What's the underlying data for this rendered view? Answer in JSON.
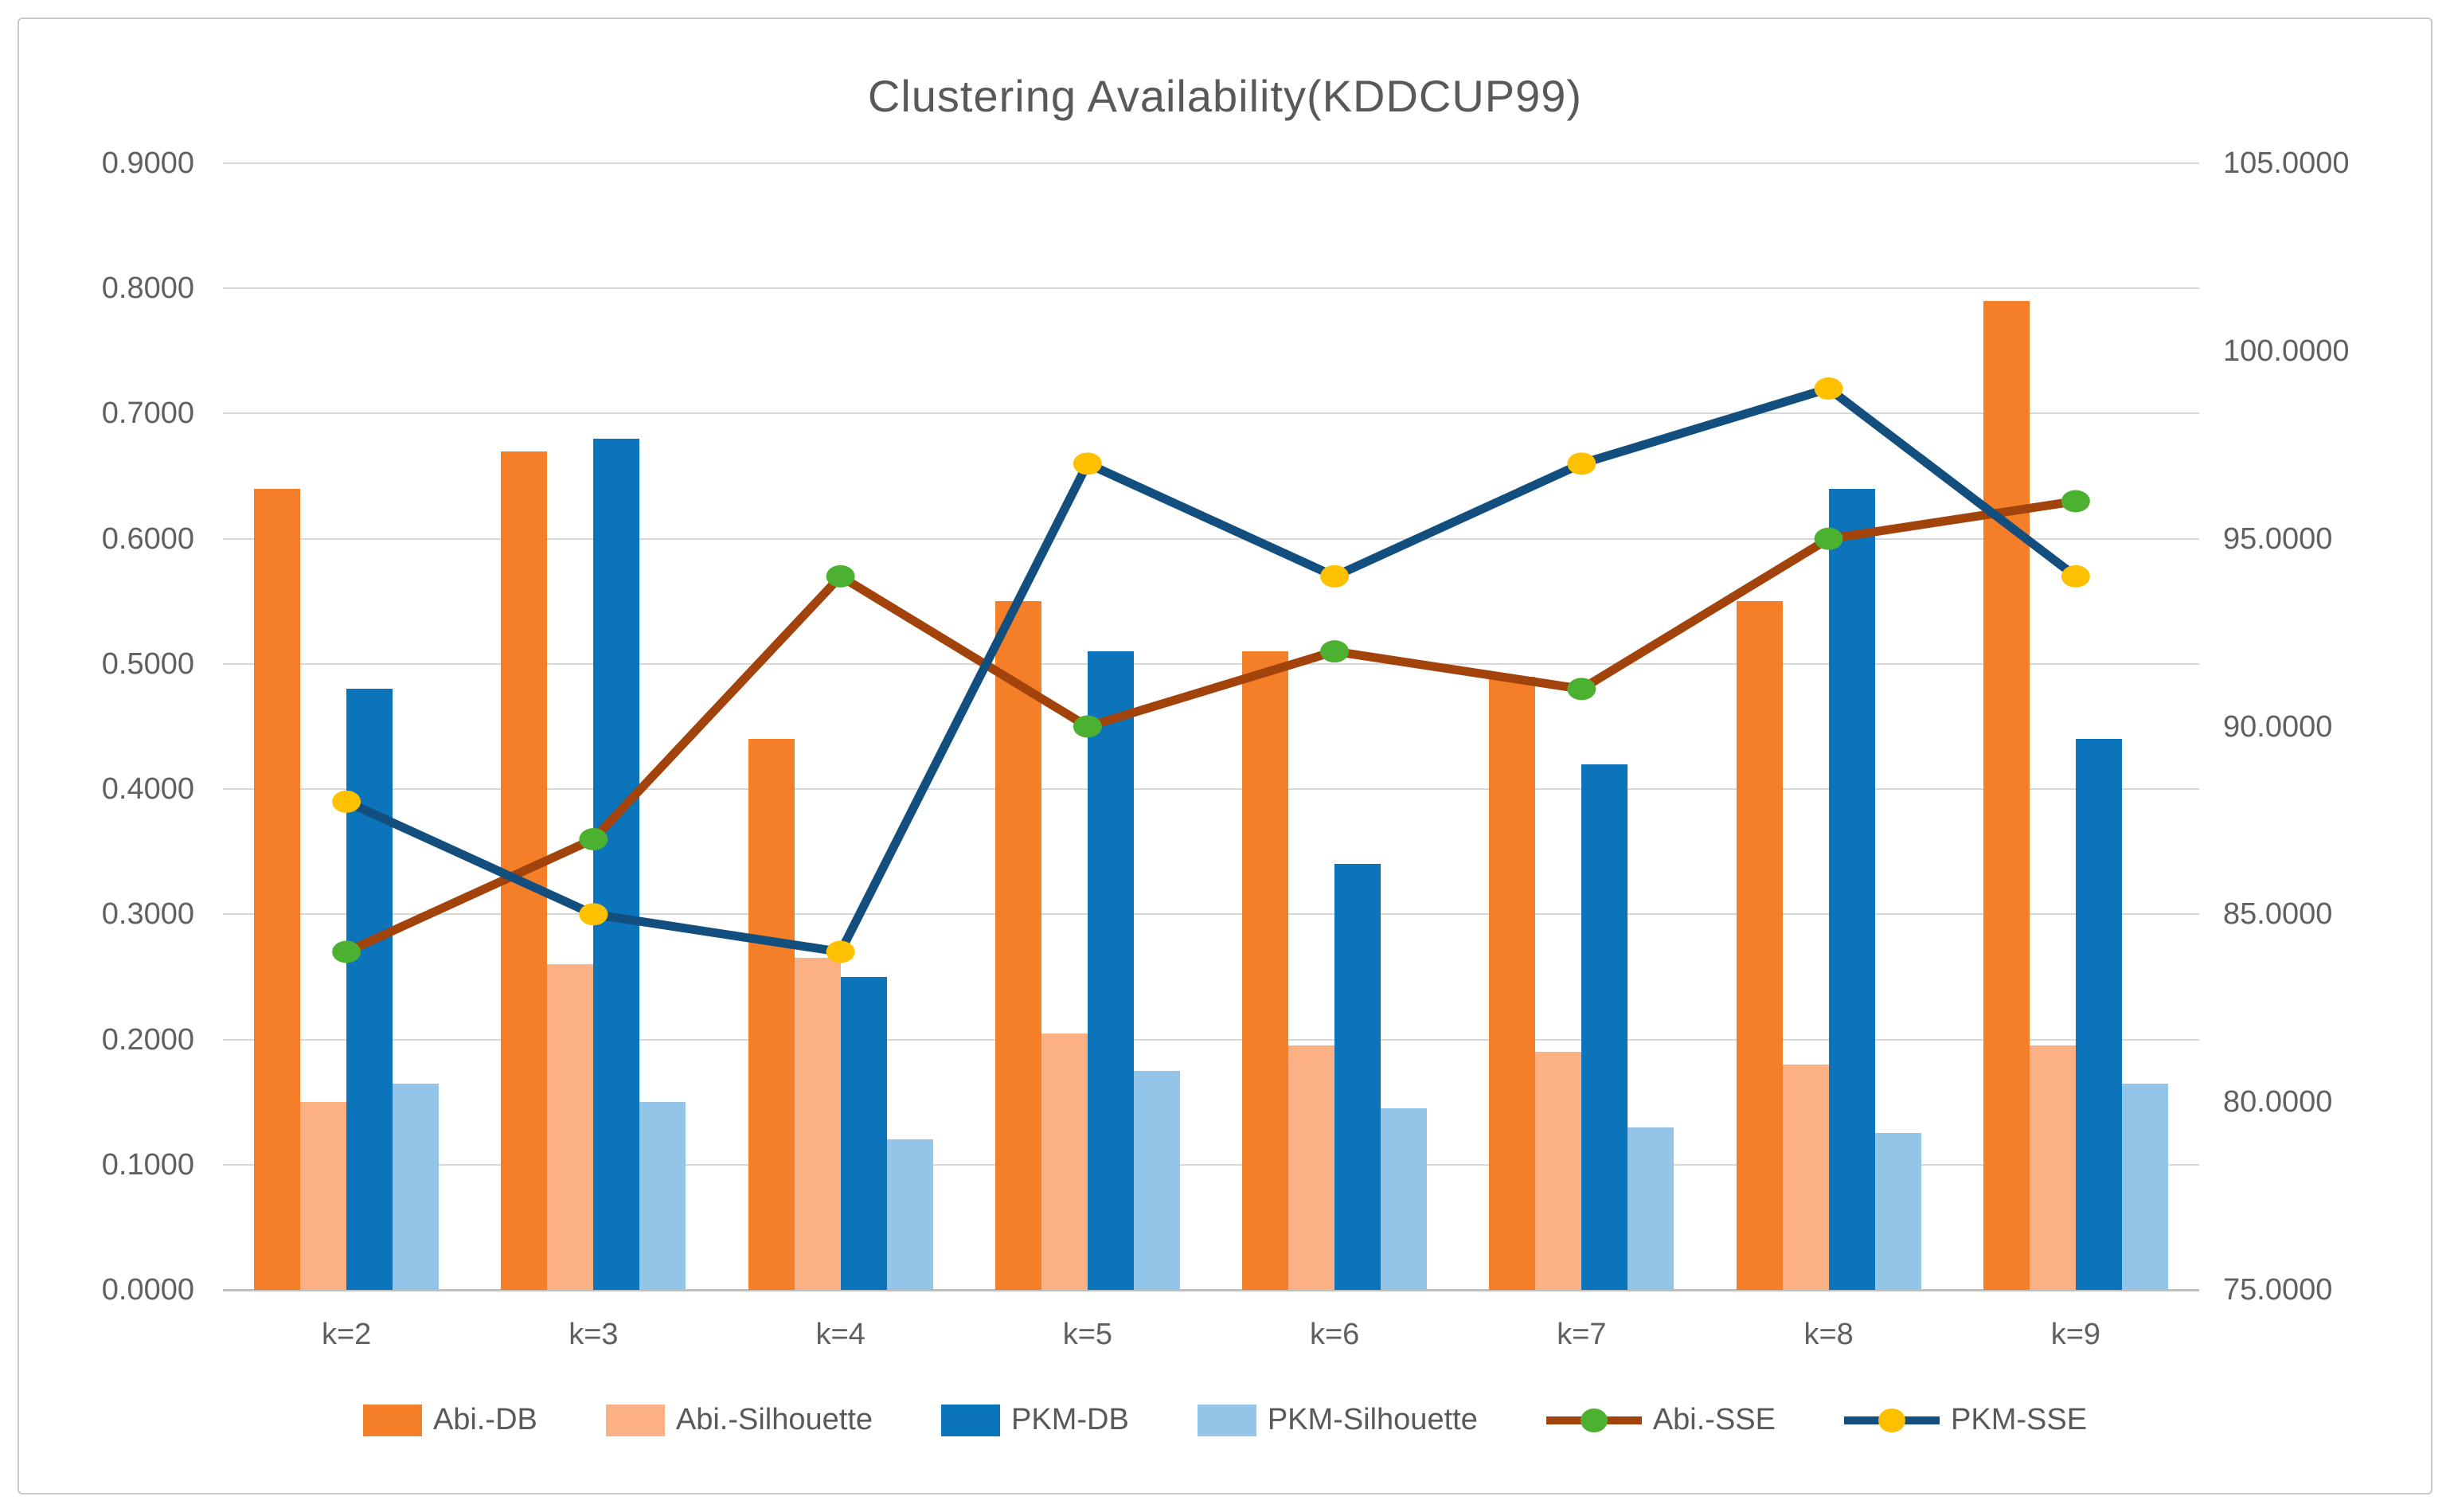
{
  "title": "Clustering Availability(KDDCUP99)",
  "chart_data": {
    "type": "combo-bar-line",
    "title": "Clustering Availability(KDDCUP99)",
    "categories": [
      "k=2",
      "k=3",
      "k=4",
      "k=5",
      "k=6",
      "k=7",
      "k=8",
      "k=9"
    ],
    "bar_series": [
      {
        "name": "Abi.-DB",
        "color": "#f57e28",
        "axis": "left",
        "values": [
          0.64,
          0.67,
          0.44,
          0.55,
          0.51,
          0.49,
          0.55,
          0.79
        ]
      },
      {
        "name": "Abi.-Silhouette",
        "color": "#fbb183",
        "axis": "left",
        "values": [
          0.15,
          0.26,
          0.265,
          0.205,
          0.195,
          0.19,
          0.18,
          0.195
        ]
      },
      {
        "name": "PKM-DB",
        "color": "#0c74bb",
        "axis": "left",
        "values": [
          0.48,
          0.68,
          0.25,
          0.51,
          0.34,
          0.42,
          0.64,
          0.44
        ]
      },
      {
        "name": "PKM-Silhouette",
        "color": "#92c5e8",
        "axis": "left",
        "values": [
          0.165,
          0.15,
          0.12,
          0.175,
          0.145,
          0.13,
          0.125,
          0.165
        ]
      }
    ],
    "line_series": [
      {
        "name": "Abi.-SSE",
        "line_color": "#a2430b",
        "marker_color": "#4cb130",
        "axis": "right",
        "values": [
          84.0,
          87.0,
          94.0,
          90.0,
          92.0,
          91.0,
          95.0,
          96.0
        ]
      },
      {
        "name": "PKM-SSE",
        "line_color": "#124f7e",
        "marker_color": "#ffc000",
        "axis": "right",
        "values": [
          88.0,
          85.0,
          84.0,
          97.0,
          94.0,
          97.0,
          99.0,
          94.0
        ]
      }
    ],
    "left_axis": {
      "min": 0.0,
      "max": 0.9,
      "step": 0.1,
      "tick_labels": [
        "0.0000",
        "0.1000",
        "0.2000",
        "0.3000",
        "0.4000",
        "0.5000",
        "0.6000",
        "0.7000",
        "0.8000",
        "0.9000"
      ]
    },
    "right_axis": {
      "min": 75.0,
      "max": 105.0,
      "step": 5.0,
      "tick_labels": [
        "75.0000",
        "80.0000",
        "85.0000",
        "90.0000",
        "95.0000",
        "100.0000",
        "105.0000"
      ]
    },
    "grid": true,
    "legend_position": "bottom",
    "palette": {
      "gridline": "#d8d8d8",
      "axis_line": "#bfbfbf",
      "text": "#595959",
      "frame_border": "#c9c9c9",
      "background": "#ffffff"
    }
  }
}
